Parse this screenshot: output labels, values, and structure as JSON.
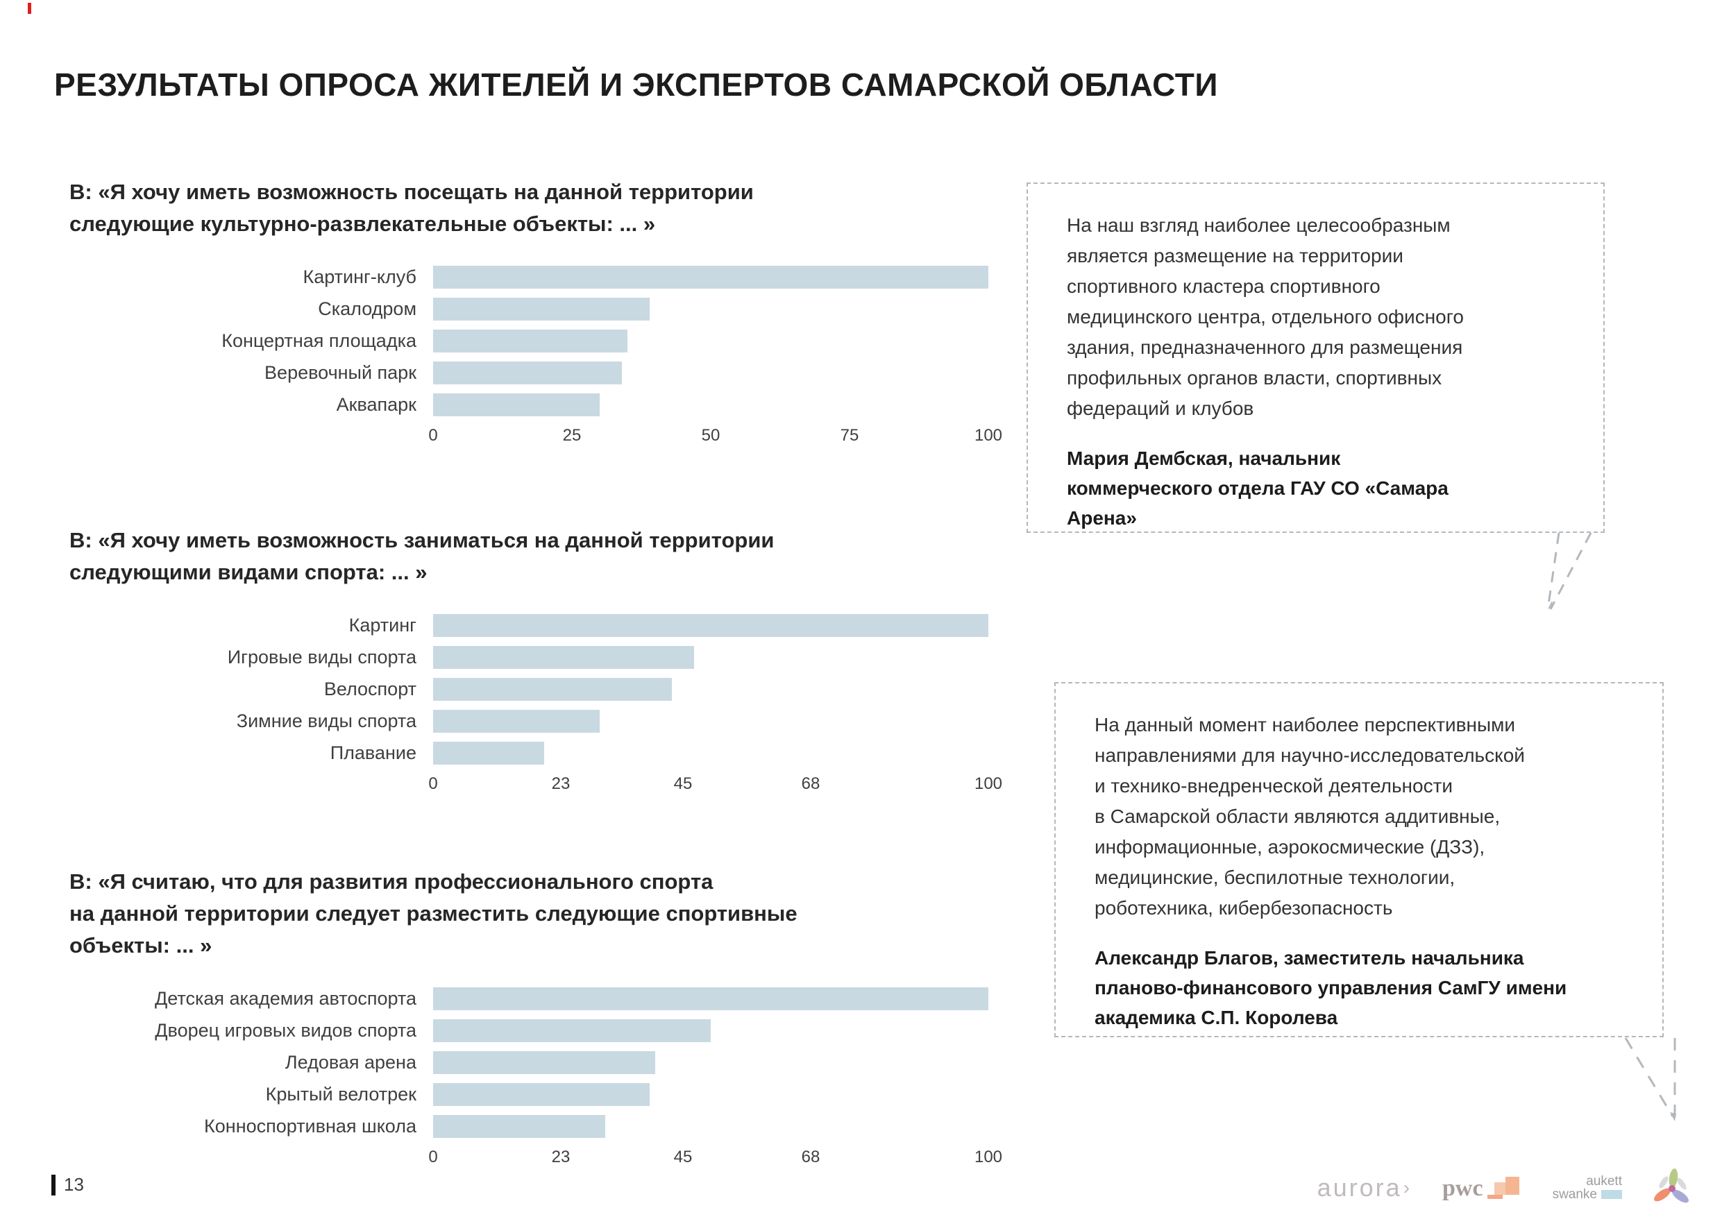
{
  "header": {
    "title": "РЕЗУЛЬТАТЫ ОПРОСА ЖИТЕЛЕЙ И ЭКСПЕРТОВ САМАРСКОЙ ОБЛАСТИ"
  },
  "colors": {
    "bar_fill": "#c9d9e2",
    "dashed_border": "#b3b8bc",
    "accent_red": "#e01f1f",
    "title_text": "#1d1d1d",
    "body_text": "#333333"
  },
  "chart_data": [
    {
      "type": "bar",
      "orientation": "horizontal",
      "title": "В: «Я хочу иметь возможность посещать на данной территории\nследующие культурно-развлекательные объекты: ... »",
      "categories": [
        "Картинг-клуб",
        "Скалодром",
        "Концертная площадка",
        "Веревочный парк",
        "Аквапарк"
      ],
      "values": [
        100,
        39,
        35,
        34,
        30
      ],
      "ticks": [
        0,
        25,
        50,
        75,
        100
      ],
      "xlim": [
        0,
        100
      ],
      "bar_color": "#c9d9e2",
      "grid": false,
      "legend": false
    },
    {
      "type": "bar",
      "orientation": "horizontal",
      "title": "В: «Я хочу иметь возможность заниматься на данной территории\nследующими видами спорта: ... »",
      "categories": [
        "Картинг",
        "Игровые виды спорта",
        "Велоспорт",
        "Зимние виды спорта",
        "Плавание"
      ],
      "values": [
        100,
        47,
        43,
        30,
        20
      ],
      "ticks": [
        0,
        23,
        45,
        68,
        100
      ],
      "xlim": [
        0,
        100
      ],
      "bar_color": "#c9d9e2",
      "grid": false,
      "legend": false
    },
    {
      "type": "bar",
      "orientation": "horizontal",
      "title": "В: «Я считаю, что для развития профессионального спорта\nна данной территории следует разместить следующие спортивные\nобъекты: ... »",
      "categories": [
        "Детская академия автоспорта",
        "Дворец игровых видов спорта",
        "Ледовая арена",
        "Крытый велотрек",
        "Конноспортивная школа"
      ],
      "values": [
        100,
        50,
        40,
        39,
        31
      ],
      "ticks": [
        0,
        23,
        45,
        68,
        100
      ],
      "xlim": [
        0,
        100
      ],
      "bar_color": "#c9d9e2",
      "grid": false,
      "legend": false
    }
  ],
  "quotes": [
    {
      "text": "На наш взгляд наиболее целесообразным\nявляется размещение на территории\nспортивного кластера спортивного\nмедицинского центра, отдельного офисного\nздания, предназначенного для размещения\nпрофильных органов власти, спортивных\nфедераций и клубов",
      "author": "Мария Дембская, начальник\nкоммерческого отдела ГАУ СО «Самара\nАрена»"
    },
    {
      "text": "На данный момент наиболее перспективными\nнаправлениями для научно-исследовательской\nи технико-внедренческой деятельности\nв Самарской области являются аддитивные,\nинформационные, аэрокосмические (ДЗЗ),\nмедицинские, беспилотные технологии,\nроботехника, кибербезопасность",
      "author": "Александр Благов, заместитель начальника\nпланово-финансового управления СамГУ имени\nакадемика С.П. Королева"
    }
  ],
  "footer": {
    "page_number": "13",
    "logos": {
      "aurora": "aurora",
      "aurora_arrow": "›",
      "pwc": "pwc",
      "aukett_line1": "aukett",
      "aukett_line2": "swanke"
    }
  }
}
